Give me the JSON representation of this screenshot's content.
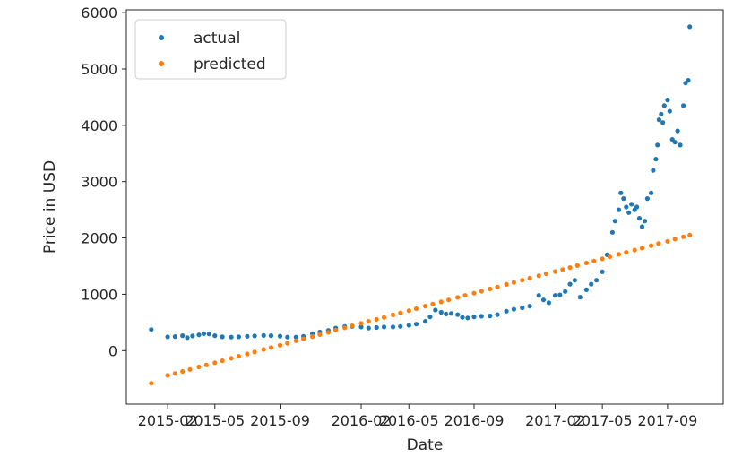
{
  "chart_data": {
    "type": "scatter",
    "title": "",
    "xlabel": "Date",
    "ylabel": "Price in USD",
    "xlim": [
      "2014-11-15",
      "2017-12-15"
    ],
    "ylim": [
      -950,
      6050
    ],
    "grid": false,
    "legend_position": "top-left",
    "x_ticks": [
      "2015-02",
      "2015-05",
      "2015-09",
      "2016-02",
      "2016-05",
      "2016-09",
      "2017-02",
      "2017-05",
      "2017-09"
    ],
    "y_ticks": [
      0,
      1000,
      2000,
      3000,
      4000,
      5000,
      6000
    ],
    "series": [
      {
        "name": "actual",
        "color": "#1f77b4",
        "points": [
          [
            "2015-01-01",
            375
          ],
          [
            "2015-02-01",
            245
          ],
          [
            "2015-02-15",
            250
          ],
          [
            "2015-03-01",
            265
          ],
          [
            "2015-03-10",
            230
          ],
          [
            "2015-03-20",
            260
          ],
          [
            "2015-04-01",
            280
          ],
          [
            "2015-04-10",
            300
          ],
          [
            "2015-04-20",
            295
          ],
          [
            "2015-05-01",
            265
          ],
          [
            "2015-05-15",
            245
          ],
          [
            "2015-06-01",
            240
          ],
          [
            "2015-06-15",
            245
          ],
          [
            "2015-07-01",
            255
          ],
          [
            "2015-07-15",
            260
          ],
          [
            "2015-08-01",
            268
          ],
          [
            "2015-08-15",
            265
          ],
          [
            "2015-09-01",
            258
          ],
          [
            "2015-09-15",
            240
          ],
          [
            "2015-10-01",
            240
          ],
          [
            "2015-10-15",
            255
          ],
          [
            "2015-11-01",
            300
          ],
          [
            "2015-11-15",
            330
          ],
          [
            "2015-12-01",
            360
          ],
          [
            "2015-12-15",
            400
          ],
          [
            "2016-01-01",
            430
          ],
          [
            "2016-01-15",
            430
          ],
          [
            "2016-02-01",
            420
          ],
          [
            "2016-02-15",
            400
          ],
          [
            "2016-03-01",
            410
          ],
          [
            "2016-03-15",
            420
          ],
          [
            "2016-04-01",
            420
          ],
          [
            "2016-04-15",
            430
          ],
          [
            "2016-05-01",
            450
          ],
          [
            "2016-05-15",
            470
          ],
          [
            "2016-06-01",
            520
          ],
          [
            "2016-06-10",
            600
          ],
          [
            "2016-06-20",
            720
          ],
          [
            "2016-07-01",
            680
          ],
          [
            "2016-07-10",
            650
          ],
          [
            "2016-07-20",
            660
          ],
          [
            "2016-08-01",
            640
          ],
          [
            "2016-08-10",
            590
          ],
          [
            "2016-08-20",
            580
          ],
          [
            "2016-09-01",
            600
          ],
          [
            "2016-09-15",
            610
          ],
          [
            "2016-10-01",
            615
          ],
          [
            "2016-10-15",
            640
          ],
          [
            "2016-11-01",
            700
          ],
          [
            "2016-11-15",
            735
          ],
          [
            "2016-12-01",
            760
          ],
          [
            "2016-12-15",
            790
          ],
          [
            "2017-01-01",
            980
          ],
          [
            "2017-01-10",
            900
          ],
          [
            "2017-01-20",
            850
          ],
          [
            "2017-02-01",
            980
          ],
          [
            "2017-02-10",
            990
          ],
          [
            "2017-02-20",
            1050
          ],
          [
            "2017-03-01",
            1180
          ],
          [
            "2017-03-10",
            1250
          ],
          [
            "2017-03-20",
            950
          ],
          [
            "2017-04-01",
            1080
          ],
          [
            "2017-04-10",
            1180
          ],
          [
            "2017-04-20",
            1250
          ],
          [
            "2017-05-01",
            1400
          ],
          [
            "2017-05-10",
            1700
          ],
          [
            "2017-05-20",
            2100
          ],
          [
            "2017-05-25",
            2300
          ],
          [
            "2017-06-01",
            2500
          ],
          [
            "2017-06-05",
            2800
          ],
          [
            "2017-06-10",
            2700
          ],
          [
            "2017-06-15",
            2550
          ],
          [
            "2017-06-20",
            2450
          ],
          [
            "2017-06-25",
            2600
          ],
          [
            "2017-07-01",
            2500
          ],
          [
            "2017-07-05",
            2550
          ],
          [
            "2017-07-10",
            2350
          ],
          [
            "2017-07-15",
            2200
          ],
          [
            "2017-07-20",
            2300
          ],
          [
            "2017-07-25",
            2700
          ],
          [
            "2017-08-01",
            2800
          ],
          [
            "2017-08-05",
            3200
          ],
          [
            "2017-08-10",
            3400
          ],
          [
            "2017-08-13",
            3650
          ],
          [
            "2017-08-16",
            4100
          ],
          [
            "2017-08-20",
            4200
          ],
          [
            "2017-08-23",
            4050
          ],
          [
            "2017-08-26",
            4350
          ],
          [
            "2017-09-01",
            4450
          ],
          [
            "2017-09-05",
            4250
          ],
          [
            "2017-09-10",
            3750
          ],
          [
            "2017-09-15",
            3700
          ],
          [
            "2017-09-20",
            3900
          ],
          [
            "2017-09-25",
            3650
          ],
          [
            "2017-10-01",
            4350
          ],
          [
            "2017-10-05",
            4750
          ],
          [
            "2017-10-10",
            4800
          ],
          [
            "2017-10-13",
            5750
          ]
        ]
      },
      {
        "name": "predicted",
        "color": "#ff7f0e",
        "points": [
          [
            "2015-01-01",
            -580
          ],
          [
            "2015-02-01",
            -440
          ],
          [
            "2015-02-15",
            -405
          ],
          [
            "2015-03-01",
            -370
          ],
          [
            "2015-03-15",
            -335
          ],
          [
            "2015-04-01",
            -290
          ],
          [
            "2015-04-15",
            -255
          ],
          [
            "2015-05-01",
            -215
          ],
          [
            "2015-05-15",
            -180
          ],
          [
            "2015-06-01",
            -135
          ],
          [
            "2015-06-15",
            -100
          ],
          [
            "2015-07-01",
            -60
          ],
          [
            "2015-07-15",
            -25
          ],
          [
            "2015-08-01",
            20
          ],
          [
            "2015-08-15",
            55
          ],
          [
            "2015-09-01",
            95
          ],
          [
            "2015-09-15",
            130
          ],
          [
            "2015-10-01",
            175
          ],
          [
            "2015-10-15",
            210
          ],
          [
            "2015-11-01",
            250
          ],
          [
            "2015-11-15",
            285
          ],
          [
            "2015-12-01",
            325
          ],
          [
            "2015-12-15",
            365
          ],
          [
            "2016-01-01",
            405
          ],
          [
            "2016-01-15",
            440
          ],
          [
            "2016-02-01",
            485
          ],
          [
            "2016-02-15",
            520
          ],
          [
            "2016-03-01",
            555
          ],
          [
            "2016-03-15",
            590
          ],
          [
            "2016-04-01",
            635
          ],
          [
            "2016-04-15",
            670
          ],
          [
            "2016-05-01",
            710
          ],
          [
            "2016-05-15",
            745
          ],
          [
            "2016-06-01",
            790
          ],
          [
            "2016-06-15",
            825
          ],
          [
            "2016-07-01",
            865
          ],
          [
            "2016-07-15",
            900
          ],
          [
            "2016-08-01",
            945
          ],
          [
            "2016-08-15",
            980
          ],
          [
            "2016-09-01",
            1020
          ],
          [
            "2016-09-15",
            1055
          ],
          [
            "2016-10-01",
            1095
          ],
          [
            "2016-10-15",
            1130
          ],
          [
            "2016-11-01",
            1175
          ],
          [
            "2016-11-15",
            1210
          ],
          [
            "2016-12-01",
            1250
          ],
          [
            "2016-12-15",
            1285
          ],
          [
            "2017-01-01",
            1330
          ],
          [
            "2017-01-15",
            1365
          ],
          [
            "2017-02-01",
            1405
          ],
          [
            "2017-02-15",
            1440
          ],
          [
            "2017-03-01",
            1475
          ],
          [
            "2017-03-15",
            1510
          ],
          [
            "2017-04-01",
            1555
          ],
          [
            "2017-04-15",
            1590
          ],
          [
            "2017-05-01",
            1630
          ],
          [
            "2017-05-15",
            1665
          ],
          [
            "2017-06-01",
            1710
          ],
          [
            "2017-06-15",
            1745
          ],
          [
            "2017-07-01",
            1785
          ],
          [
            "2017-07-15",
            1820
          ],
          [
            "2017-08-01",
            1865
          ],
          [
            "2017-08-15",
            1900
          ],
          [
            "2017-09-01",
            1940
          ],
          [
            "2017-09-15",
            1980
          ],
          [
            "2017-10-01",
            2020
          ],
          [
            "2017-10-13",
            2050
          ]
        ]
      }
    ]
  }
}
